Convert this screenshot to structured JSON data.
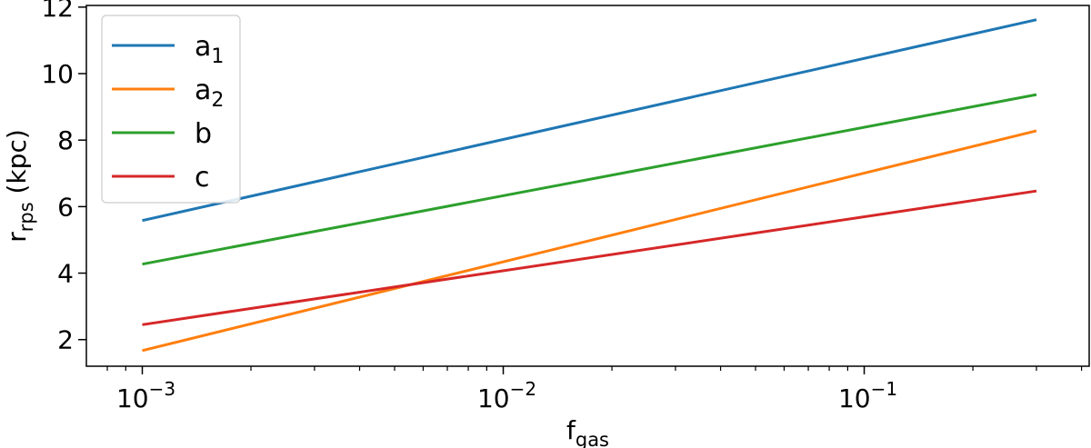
{
  "chart_data": {
    "type": "line",
    "xscale": "log",
    "xlabel": {
      "main": "f",
      "sub": "gas"
    },
    "ylabel": {
      "main": "r",
      "sub": "rps",
      "rest": " (kpc)"
    },
    "xlim": [
      0.0007,
      0.42
    ],
    "ylim": [
      1.2,
      12.05
    ],
    "x_major_ticks": [
      {
        "value": 0.001,
        "base": "10",
        "exp": "−3"
      },
      {
        "value": 0.01,
        "base": "10",
        "exp": "−2"
      },
      {
        "value": 0.1,
        "base": "10",
        "exp": "−1"
      }
    ],
    "y_ticks": [
      {
        "value": 2,
        "label": "2"
      },
      {
        "value": 4,
        "label": "4"
      },
      {
        "value": 6,
        "label": "6"
      },
      {
        "value": 8,
        "label": "8"
      },
      {
        "value": 10,
        "label": "10"
      },
      {
        "value": 12,
        "label": "12"
      }
    ],
    "legend": {
      "position": "upper-left"
    },
    "series": [
      {
        "name": "a",
        "name_sub": "1",
        "color": "#1f77b4",
        "x": [
          0.001,
          0.3
        ],
        "y": [
          5.58,
          11.62
        ]
      },
      {
        "name": "a",
        "name_sub": "2",
        "color": "#ff7f0e",
        "x": [
          0.001,
          0.3
        ],
        "y": [
          1.67,
          8.28
        ]
      },
      {
        "name": "b",
        "name_sub": "",
        "color": "#2ca02c",
        "x": [
          0.001,
          0.3
        ],
        "y": [
          4.27,
          9.37
        ]
      },
      {
        "name": "c",
        "name_sub": "",
        "color": "#d62728",
        "x": [
          0.001,
          0.3
        ],
        "y": [
          2.45,
          6.47
        ]
      }
    ]
  }
}
